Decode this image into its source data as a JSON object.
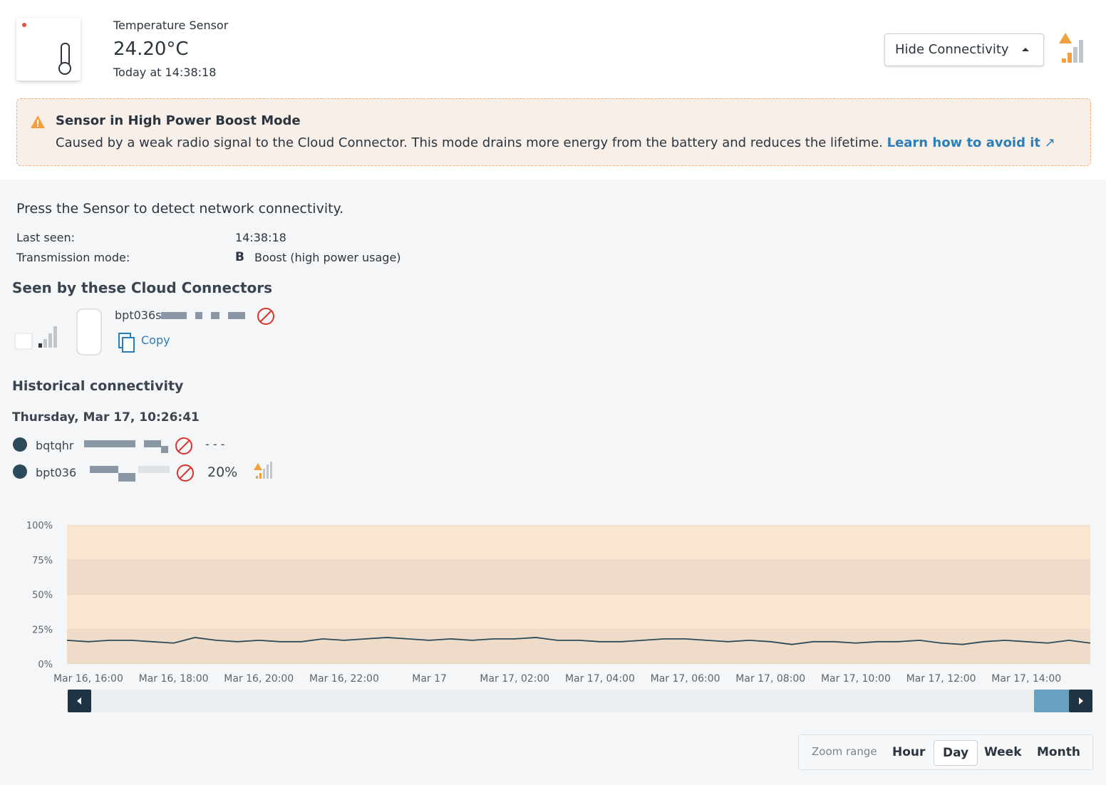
{
  "header": {
    "label": "Temperature Sensor",
    "value": "24.20°C",
    "time": "Today at 14:38:18",
    "button": "Hide Connectivity"
  },
  "alert": {
    "title": "Sensor in High Power Boost Mode",
    "text": "Caused by a weak radio signal to the Cloud Connector. This mode drains more energy from the battery and reduces the lifetime.",
    "link": "Learn how to avoid it"
  },
  "info": {
    "prompt": "Press the Sensor to detect network connectivity.",
    "last_seen_label": "Last seen:",
    "last_seen": "14:38:18",
    "mode_label": "Transmission mode:",
    "mode_code": "B",
    "mode": "Boost (high power usage)"
  },
  "connectors": {
    "heading": "Seen by these Cloud Connectors",
    "name": "bpt036s",
    "copy": "Copy"
  },
  "history": {
    "heading": "Historical connectivity",
    "date": "Thursday, Mar 17, 10:26:41",
    "entries": [
      {
        "name": "bqtqhr",
        "value": "- - -"
      },
      {
        "name": "bpt036",
        "value": "20%"
      }
    ]
  },
  "zoom": {
    "label": "Zoom range",
    "options": [
      "Hour",
      "Day",
      "Week",
      "Month"
    ],
    "selected": "Day"
  },
  "chart_data": {
    "type": "line",
    "color": "#2d4a5a",
    "categories": [
      null,
      "Mar 16, 16:00",
      null,
      null,
      null,
      "Mar 16, 18:00",
      null,
      null,
      null,
      "Mar 16, 20:00",
      null,
      null,
      null,
      "Mar 16, 22:00",
      null,
      null,
      null,
      "Mar 17",
      null,
      null,
      null,
      "Mar 17, 02:00",
      null,
      null,
      null,
      "Mar 17, 04:00",
      null,
      null,
      null,
      "Mar 17, 06:00",
      null,
      null,
      null,
      "Mar 17, 08:00",
      null,
      null,
      null,
      "Mar 17, 10:00",
      null,
      null,
      null,
      "Mar 17, 12:00",
      null,
      null,
      null,
      "Mar 17, 14:00",
      null,
      null,
      null
    ],
    "values": [
      17,
      16,
      17,
      17,
      16,
      15,
      19,
      17,
      16,
      17,
      16,
      16,
      18,
      17,
      18,
      19,
      18,
      17,
      18,
      17,
      18,
      18,
      19,
      17,
      17,
      16,
      16,
      17,
      18,
      18,
      17,
      16,
      17,
      16,
      14,
      16,
      16,
      15,
      16,
      16,
      17,
      15,
      14,
      16,
      17,
      16,
      15,
      17,
      15
    ],
    "ylim": [
      0,
      100
    ],
    "yticks": [
      {
        "value": 0,
        "label": "0%"
      },
      {
        "value": 25,
        "label": "25%"
      },
      {
        "value": 50,
        "label": "50%"
      },
      {
        "value": 75,
        "label": "75%"
      },
      {
        "value": 100,
        "label": "100%"
      }
    ]
  }
}
